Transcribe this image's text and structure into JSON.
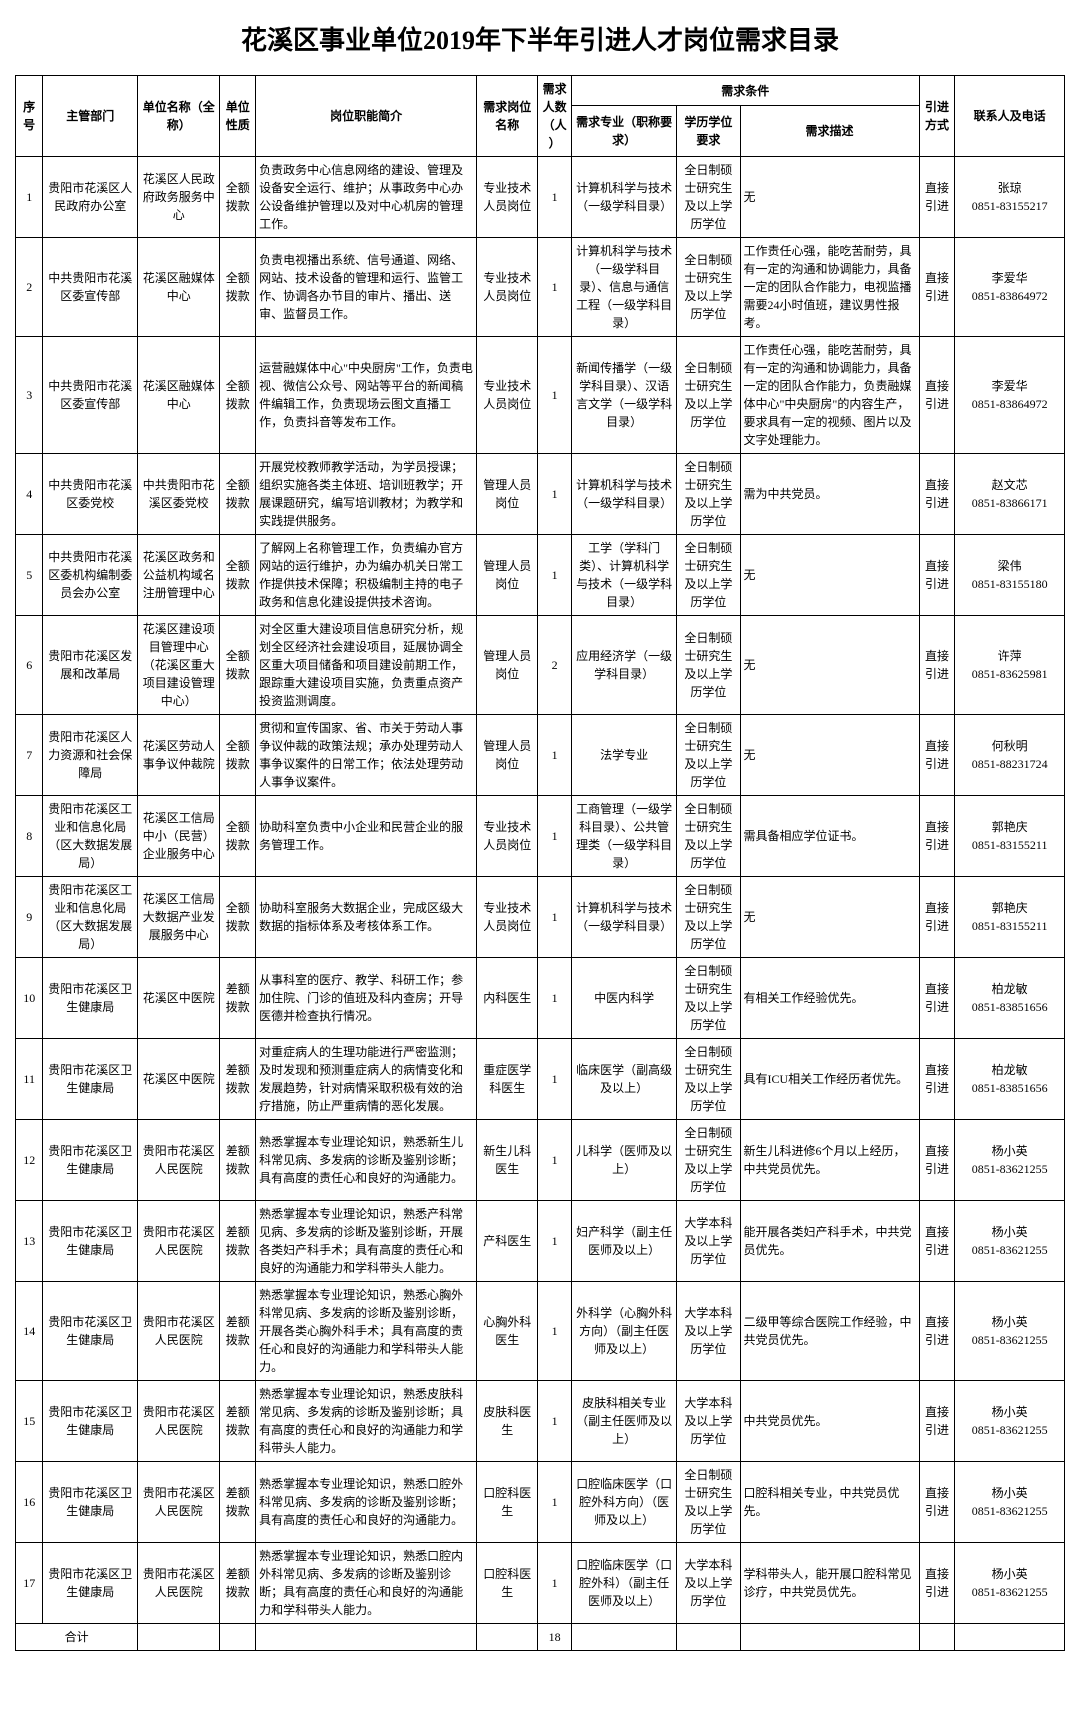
{
  "title": "花溪区事业单位2019年下半年引进人才岗位需求目录",
  "headers": {
    "seq": "序号",
    "dept": "主管部门",
    "unit": "单位名称（全称）",
    "nature": "单位性质",
    "job": "岗位职能简介",
    "posName": "需求岗位名称",
    "num": "需求人数（人）",
    "cond": "需求条件",
    "major": "需求专业（职称要求）",
    "edu": "学历学位要求",
    "desc": "需求描述",
    "mode": "引进方式",
    "contact": "联系人及电话",
    "total": "合计",
    "totalNum": "18"
  },
  "rows": [
    {
      "seq": "1",
      "dept": "贵阳市花溪区人民政府办公室",
      "unit": "花溪区人民政府政务服务中心",
      "nat": "全额拨款",
      "job": "负责政务中心信息网络的建设、管理及设备安全运行、维护；从事政务中心办公设备维护管理以及对中心机房的管理工作。",
      "pos": "专业技术人员岗位",
      "num": "1",
      "major": "计算机科学与技术（一级学科目录）",
      "edu": "全日制硕士研究生及以上学历学位",
      "desc": "无",
      "mode": "直接引进",
      "contact": "张琼\n0851-83155217"
    },
    {
      "seq": "2",
      "dept": "中共贵阳市花溪区委宣传部",
      "unit": "花溪区融媒体中心",
      "nat": "全额拨款",
      "job": "负责电视播出系统、信号通道、网络、网站、技术设备的管理和运行、监管工作、协调各办节目的审片、播出、送审、监督员工作。",
      "pos": "专业技术人员岗位",
      "num": "1",
      "major": "计算机科学与技术（一级学科目录）、信息与通信工程（一级学科目录）",
      "edu": "全日制硕士研究生及以上学历学位",
      "desc": "工作责任心强，能吃苦耐劳，具有一定的沟通和协调能力，具备一定的团队合作能力，电视监播需要24小时值班，建议男性报考。",
      "mode": "直接引进",
      "contact": "李爱华\n0851-83864972"
    },
    {
      "seq": "3",
      "dept": "中共贵阳市花溪区委宣传部",
      "unit": "花溪区融媒体中心",
      "nat": "全额拨款",
      "job": "运营融媒体中心\"中央厨房\"工作，负责电视、微信公众号、网站等平台的新闻稿件编辑工作，负责现场云图文直播工作，负责抖音等发布工作。",
      "pos": "专业技术人员岗位",
      "num": "1",
      "major": "新闻传播学（一级学科目录）、汉语言文学（一级学科目录）",
      "edu": "全日制硕士研究生及以上学历学位",
      "desc": "工作责任心强，能吃苦耐劳，具有一定的沟通和协调能力，具备一定的团队合作能力，负责融媒体中心\"中央厨房\"的内容生产，要求具有一定的视频、图片以及文字处理能力。",
      "mode": "直接引进",
      "contact": "李爱华\n0851-83864972"
    },
    {
      "seq": "4",
      "dept": "中共贵阳市花溪区委党校",
      "unit": "中共贵阳市花溪区委党校",
      "nat": "全额拨款",
      "job": "开展党校教师教学活动，为学员授课；组织实施各类主体班、培训班教学；开展课题研究，编写培训教材；为教学和实践提供服务。",
      "pos": "管理人员岗位",
      "num": "1",
      "major": "计算机科学与技术（一级学科目录）",
      "edu": "全日制硕士研究生及以上学历学位",
      "desc": "需为中共党员。",
      "mode": "直接引进",
      "contact": "赵文芯\n0851-83866171"
    },
    {
      "seq": "5",
      "dept": "中共贵阳市花溪区委机构编制委员会办公室",
      "unit": "花溪区政务和公益机构域名注册管理中心",
      "nat": "全额拨款",
      "job": "了解网上名称管理工作，负责编办官方网站的运行维护，办为编办机关日常工作提供技术保障；积极编制主持的电子政务和信息化建设提供技术咨询。",
      "pos": "管理人员岗位",
      "num": "1",
      "major": "工学（学科门类）、计算机科学与技术（一级学科目录）",
      "edu": "全日制硕士研究生及以上学历学位",
      "desc": "无",
      "mode": "直接引进",
      "contact": "梁伟\n0851-83155180"
    },
    {
      "seq": "6",
      "dept": "贵阳市花溪区发展和改革局",
      "unit": "花溪区建设项目管理中心（花溪区重大项目建设管理中心）",
      "nat": "全额拨款",
      "job": "对全区重大建设项目信息研究分析，规划全区经济社会建设项目，延展协调全区重大项目储备和项目建设前期工作，跟踪重大建设项目实施，负责重点资产投资监测调度。",
      "pos": "管理人员岗位",
      "num": "2",
      "major": "应用经济学（一级学科目录）",
      "edu": "全日制硕士研究生及以上学历学位",
      "desc": "无",
      "mode": "直接引进",
      "contact": "许萍\n0851-83625981"
    },
    {
      "seq": "7",
      "dept": "贵阳市花溪区人力资源和社会保障局",
      "unit": "花溪区劳动人事争议仲裁院",
      "nat": "全额拨款",
      "job": "贯彻和宣传国家、省、市关于劳动人事争议仲裁的政策法规；承办处理劳动人事争议案件的日常工作；依法处理劳动人事争议案件。",
      "pos": "管理人员岗位",
      "num": "1",
      "major": "法学专业",
      "edu": "全日制硕士研究生及以上学历学位",
      "desc": "无",
      "mode": "直接引进",
      "contact": "何秋明\n0851-88231724"
    },
    {
      "seq": "8",
      "dept": "贵阳市花溪区工业和信息化局（区大数据发展局）",
      "unit": "花溪区工信局中小（民营）企业服务中心",
      "nat": "全额拨款",
      "job": "协助科室负责中小企业和民营企业的服务管理工作。",
      "pos": "专业技术人员岗位",
      "num": "1",
      "major": "工商管理（一级学科目录）、公共管理类（一级学科目录）",
      "edu": "全日制硕士研究生及以上学历学位",
      "desc": "需具备相应学位证书。",
      "mode": "直接引进",
      "contact": "郭艳庆\n0851-83155211"
    },
    {
      "seq": "9",
      "dept": "贵阳市花溪区工业和信息化局（区大数据发展局）",
      "unit": "花溪区工信局大数据产业发展服务中心",
      "nat": "全额拨款",
      "job": "协助科室服务大数据企业，完成区级大数据的指标体系及考核体系工作。",
      "pos": "专业技术人员岗位",
      "num": "1",
      "major": "计算机科学与技术（一级学科目录）",
      "edu": "全日制硕士研究生及以上学历学位",
      "desc": "无",
      "mode": "直接引进",
      "contact": "郭艳庆\n0851-83155211"
    },
    {
      "seq": "10",
      "dept": "贵阳市花溪区卫生健康局",
      "unit": "花溪区中医院",
      "nat": "差额拨款",
      "job": "从事科室的医疗、教学、科研工作；参加住院、门诊的值班及科内查房；开导医德并检查执行情况。",
      "pos": "内科医生",
      "num": "1",
      "major": "中医内科学",
      "edu": "全日制硕士研究生及以上学历学位",
      "desc": "有相关工作经验优先。",
      "mode": "直接引进",
      "contact": "柏龙敏\n0851-83851656"
    },
    {
      "seq": "11",
      "dept": "贵阳市花溪区卫生健康局",
      "unit": "花溪区中医院",
      "nat": "差额拨款",
      "job": "对重症病人的生理功能进行严密监测；及时发现和预测重症病人的病情变化和发展趋势，针对病情采取积极有效的治疗措施，防止严重病情的恶化发展。",
      "pos": "重症医学科医生",
      "num": "1",
      "major": "临床医学（副高级及以上）",
      "edu": "全日制硕士研究生及以上学历学位",
      "desc": "具有ICU相关工作经历者优先。",
      "mode": "直接引进",
      "contact": "柏龙敏\n0851-83851656"
    },
    {
      "seq": "12",
      "dept": "贵阳市花溪区卫生健康局",
      "unit": "贵阳市花溪区人民医院",
      "nat": "差额拨款",
      "job": "熟悉掌握本专业理论知识，熟悉新生儿科常见病、多发病的诊断及鉴别诊断；具有高度的责任心和良好的沟通能力。",
      "pos": "新生儿科医生",
      "num": "1",
      "major": "儿科学（医师及以上）",
      "edu": "全日制硕士研究生及以上学历学位",
      "desc": "新生儿科进修6个月以上经历，中共党员优先。",
      "mode": "直接引进",
      "contact": "杨小英\n0851-83621255"
    },
    {
      "seq": "13",
      "dept": "贵阳市花溪区卫生健康局",
      "unit": "贵阳市花溪区人民医院",
      "nat": "差额拨款",
      "job": "熟悉掌握本专业理论知识，熟悉产科常见病、多发病的诊断及鉴别诊断，开展各类妇产科手术；具有高度的责任心和良好的沟通能力和学科带头人能力。",
      "pos": "产科医生",
      "num": "1",
      "major": "妇产科学（副主任医师及以上）",
      "edu": "大学本科及以上学历学位",
      "desc": "能开展各类妇产科手术，中共党员优先。",
      "mode": "直接引进",
      "contact": "杨小英\n0851-83621255"
    },
    {
      "seq": "14",
      "dept": "贵阳市花溪区卫生健康局",
      "unit": "贵阳市花溪区人民医院",
      "nat": "差额拨款",
      "job": "熟悉掌握本专业理论知识，熟悉心胸外科常见病、多发病的诊断及鉴别诊断，开展各类心胸外科手术；具有高度的责任心和良好的沟通能力和学科带头人能力。",
      "pos": "心胸外科医生",
      "num": "1",
      "major": "外科学（心胸外科方向）（副主任医师及以上）",
      "edu": "大学本科及以上学历学位",
      "desc": "二级甲等综合医院工作经验，中共党员优先。",
      "mode": "直接引进",
      "contact": "杨小英\n0851-83621255"
    },
    {
      "seq": "15",
      "dept": "贵阳市花溪区卫生健康局",
      "unit": "贵阳市花溪区人民医院",
      "nat": "差额拨款",
      "job": "熟悉掌握本专业理论知识，熟悉皮肤科常见病、多发病的诊断及鉴别诊断；具有高度的责任心和良好的沟通能力和学科带头人能力。",
      "pos": "皮肤科医生",
      "num": "1",
      "major": "皮肤科相关专业（副主任医师及以上）",
      "edu": "大学本科及以上学历学位",
      "desc": "中共党员优先。",
      "mode": "直接引进",
      "contact": "杨小英\n0851-83621255"
    },
    {
      "seq": "16",
      "dept": "贵阳市花溪区卫生健康局",
      "unit": "贵阳市花溪区人民医院",
      "nat": "差额拨款",
      "job": "熟悉掌握本专业理论知识，熟悉口腔外科常见病、多发病的诊断及鉴别诊断；具有高度的责任心和良好的沟通能力。",
      "pos": "口腔科医生",
      "num": "1",
      "major": "口腔临床医学（口腔外科方向）（医师及以上）",
      "edu": "全日制硕士研究生及以上学历学位",
      "desc": "口腔科相关专业，中共党员优先。",
      "mode": "直接引进",
      "contact": "杨小英\n0851-83621255"
    },
    {
      "seq": "17",
      "dept": "贵阳市花溪区卫生健康局",
      "unit": "贵阳市花溪区人民医院",
      "nat": "差额拨款",
      "job": "熟悉掌握本专业理论知识，熟悉口腔内外科常见病、多发病的诊断及鉴别诊断；具有高度的责任心和良好的沟通能力和学科带头人能力。",
      "pos": "口腔科医生",
      "num": "1",
      "major": "口腔临床医学（口腔外科）（副主任医师及以上）",
      "edu": "大学本科及以上学历学位",
      "desc": "学科带头人，能开展口腔科常见诊疗，中共党员优先。",
      "mode": "直接引进",
      "contact": "杨小英\n0851-83621255"
    }
  ]
}
